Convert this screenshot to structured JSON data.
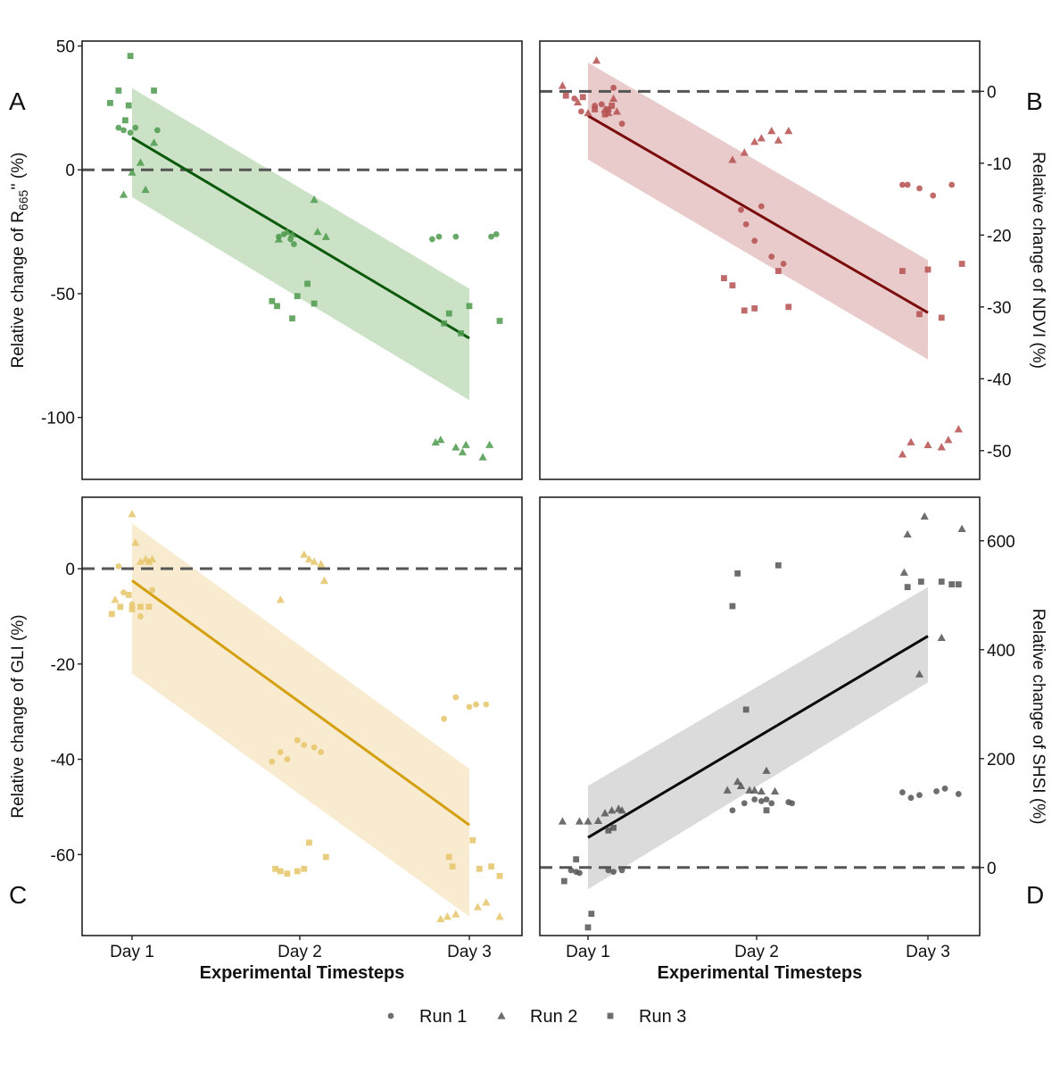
{
  "colors": {
    "green": "#1f6b1f",
    "green_line": "#0b5a0b",
    "green_point": "#4e9a4e",
    "green_band": "#b9d8b4",
    "red_line": "#7a0c0c",
    "red_point": "#b55050",
    "red_band": "#e3b9b9",
    "yellow_line": "#d4a010",
    "yellow_point": "#e6c56a",
    "yellow_band": "#f6e4c0",
    "black_line": "#0a0a0a",
    "grey_point": "#555555",
    "grey_band": "#cfcfcf",
    "dash": "#555555"
  },
  "shared": {
    "categories": [
      "Day 1",
      "Day 2",
      "Day 3"
    ],
    "xlabel": "Experimental Timesteps"
  },
  "legend": {
    "items": [
      {
        "label": "Run 1",
        "shape": "circle"
      },
      {
        "label": "Run 2",
        "shape": "triangle"
      },
      {
        "label": "Run 3",
        "shape": "square"
      }
    ]
  },
  "chart_data": [
    {
      "type": "scatter",
      "panel_letter": "A",
      "ylabel_main": "Relative change of  R",
      "ylabel_sub": "665",
      "ylabel_tail": "'' (%)",
      "ylim": [
        -125,
        52
      ],
      "yticks": [
        50,
        0,
        -50,
        -100
      ],
      "ytick_labels": [
        "50",
        "0",
        "-50",
        "-100"
      ],
      "reference_y": 0,
      "fit": {
        "start": 13,
        "end": -68
      },
      "band": {
        "upper_start": 33,
        "lower_start": -11,
        "upper_end": -48,
        "lower_end": -93
      },
      "series": [
        {
          "name": "Run 1",
          "points": [
            [
              0.92,
              17
            ],
            [
              0.95,
              16
            ],
            [
              0.99,
              15
            ],
            [
              1.02,
              17
            ],
            [
              1.15,
              16
            ],
            [
              1.87,
              -27
            ],
            [
              1.9,
              -26
            ],
            [
              1.94,
              -28
            ],
            [
              1.96,
              -30
            ],
            [
              2.78,
              -28
            ],
            [
              2.82,
              -27
            ],
            [
              2.92,
              -27
            ],
            [
              3.13,
              -27
            ],
            [
              3.16,
              -26
            ]
          ]
        },
        {
          "name": "Run 2",
          "points": [
            [
              0.95,
              -10
            ],
            [
              1.0,
              -1
            ],
            [
              1.05,
              3
            ],
            [
              1.08,
              -8
            ],
            [
              1.13,
              11
            ],
            [
              1.87,
              -28
            ],
            [
              1.92,
              -25
            ],
            [
              1.95,
              -26
            ],
            [
              2.08,
              -12
            ],
            [
              2.1,
              -25
            ],
            [
              2.15,
              -27
            ],
            [
              2.8,
              -110
            ],
            [
              2.83,
              -109
            ],
            [
              2.92,
              -112
            ],
            [
              2.96,
              -114
            ],
            [
              2.98,
              -111
            ],
            [
              3.08,
              -116
            ],
            [
              3.12,
              -111
            ]
          ]
        },
        {
          "name": "Run 3",
          "points": [
            [
              0.87,
              27
            ],
            [
              0.92,
              32
            ],
            [
              0.96,
              20
            ],
            [
              0.98,
              26
            ],
            [
              0.99,
              46
            ],
            [
              1.13,
              32
            ],
            [
              1.83,
              -53
            ],
            [
              1.86,
              -55
            ],
            [
              1.95,
              -60
            ],
            [
              1.98,
              -51
            ],
            [
              2.04,
              -46
            ],
            [
              2.08,
              -54
            ],
            [
              2.85,
              -62
            ],
            [
              2.88,
              -58
            ],
            [
              2.95,
              -66
            ],
            [
              3.0,
              -55
            ],
            [
              3.18,
              -61
            ]
          ]
        }
      ]
    },
    {
      "type": "scatter",
      "panel_letter": "B",
      "ylabel": "Relative change of NDVI  (%)",
      "ylim": [
        -54,
        7
      ],
      "yticks": [
        0,
        -10,
        -20,
        -30,
        -40,
        -50
      ],
      "ytick_labels": [
        "0",
        "-10",
        "-20",
        "-30",
        "-40",
        "-50"
      ],
      "reference_y": 0,
      "fit": {
        "start": -3.4,
        "end": -30.8
      },
      "band": {
        "upper_start": 4,
        "lower_start": -9.5,
        "upper_end": -23.5,
        "lower_end": -37.3
      },
      "series": [
        {
          "name": "Run 1",
          "points": [
            [
              0.92,
              -1
            ],
            [
              0.96,
              -2.8
            ],
            [
              1.04,
              -2
            ],
            [
              1.08,
              -1.8
            ],
            [
              1.15,
              0.5
            ],
            [
              1.2,
              -4.5
            ],
            [
              1.9,
              -16.5
            ],
            [
              1.93,
              -18.5
            ],
            [
              1.98,
              -20.8
            ],
            [
              2.02,
              -16
            ],
            [
              2.08,
              -23
            ],
            [
              2.15,
              -24
            ],
            [
              2.85,
              -13
            ],
            [
              2.88,
              -13
            ],
            [
              2.95,
              -13.5
            ],
            [
              3.03,
              -14.5
            ],
            [
              3.14,
              -13
            ]
          ]
        },
        {
          "name": "Run 2",
          "points": [
            [
              0.85,
              0.8
            ],
            [
              0.94,
              -1.5
            ],
            [
              1.0,
              -3
            ],
            [
              1.05,
              4.3
            ],
            [
              1.1,
              -2.5
            ],
            [
              1.12,
              -3
            ],
            [
              1.15,
              -1
            ],
            [
              1.17,
              -2.8
            ],
            [
              1.85,
              -9.5
            ],
            [
              1.92,
              -8.5
            ],
            [
              1.98,
              -7
            ],
            [
              2.02,
              -6.5
            ],
            [
              2.08,
              -5.5
            ],
            [
              2.12,
              -6.8
            ],
            [
              2.18,
              -5.5
            ],
            [
              2.85,
              -50.5
            ],
            [
              2.9,
              -48.8
            ],
            [
              3.0,
              -49.2
            ],
            [
              3.08,
              -49.5
            ],
            [
              3.12,
              -48.5
            ],
            [
              3.18,
              -47
            ]
          ]
        },
        {
          "name": "Run 3",
          "points": [
            [
              0.87,
              -0.6
            ],
            [
              0.97,
              -0.8
            ],
            [
              1.04,
              -2.5
            ],
            [
              1.1,
              -3.2
            ],
            [
              1.12,
              -2.5
            ],
            [
              1.14,
              -2
            ],
            [
              1.8,
              -26
            ],
            [
              1.85,
              -27
            ],
            [
              1.92,
              -30.5
            ],
            [
              1.98,
              -30.2
            ],
            [
              2.12,
              -25
            ],
            [
              2.18,
              -30
            ],
            [
              2.85,
              -25
            ],
            [
              2.95,
              -31
            ],
            [
              3.0,
              -24.8
            ],
            [
              3.08,
              -31.5
            ],
            [
              3.2,
              -24
            ]
          ]
        }
      ]
    },
    {
      "type": "scatter",
      "panel_letter": "C",
      "ylabel": "Relative change of GLI (%)",
      "ylim": [
        -77,
        15
      ],
      "yticks": [
        0,
        -20,
        -40,
        -60
      ],
      "ytick_labels": [
        "0",
        "-20",
        "-40",
        "-60"
      ],
      "reference_y": 0,
      "fit": {
        "start": -2.5,
        "end": -53.8
      },
      "band": {
        "upper_start": 9.5,
        "lower_start": -22,
        "upper_end": -42,
        "lower_end": -73
      },
      "series": [
        {
          "name": "Run 1",
          "points": [
            [
              0.92,
              0.5
            ],
            [
              0.95,
              -5
            ],
            [
              1.0,
              -7.5
            ],
            [
              1.05,
              -10
            ],
            [
              1.12,
              -4.5
            ],
            [
              1.83,
              -40.5
            ],
            [
              1.88,
              -38.5
            ],
            [
              1.92,
              -40
            ],
            [
              1.98,
              -36
            ],
            [
              2.02,
              -37
            ],
            [
              2.08,
              -37.5
            ],
            [
              2.12,
              -38.5
            ],
            [
              2.85,
              -31.5
            ],
            [
              2.92,
              -27
            ],
            [
              3.0,
              -29
            ],
            [
              3.04,
              -28.5
            ],
            [
              3.1,
              -28.5
            ]
          ]
        },
        {
          "name": "Run 2",
          "points": [
            [
              0.9,
              -6.5
            ],
            [
              1.0,
              11.5
            ],
            [
              1.02,
              5.5
            ],
            [
              1.05,
              1.5
            ],
            [
              1.08,
              2
            ],
            [
              1.1,
              1.5
            ],
            [
              1.12,
              2
            ],
            [
              1.88,
              -6.5
            ],
            [
              2.02,
              3
            ],
            [
              2.05,
              2
            ],
            [
              2.08,
              1.5
            ],
            [
              2.12,
              1
            ],
            [
              2.14,
              -2.5
            ],
            [
              2.83,
              -73.5
            ],
            [
              2.87,
              -73
            ],
            [
              2.92,
              -72.5
            ],
            [
              3.05,
              -71
            ],
            [
              3.1,
              -70
            ],
            [
              3.18,
              -73
            ]
          ]
        },
        {
          "name": "Run 3",
          "points": [
            [
              0.88,
              -9.5
            ],
            [
              0.93,
              -8
            ],
            [
              0.98,
              -5.5
            ],
            [
              1.0,
              -8.5
            ],
            [
              1.05,
              -8
            ],
            [
              1.1,
              -8
            ],
            [
              1.85,
              -63
            ],
            [
              1.88,
              -63.5
            ],
            [
              1.92,
              -64
            ],
            [
              1.98,
              -63.5
            ],
            [
              2.02,
              -63
            ],
            [
              2.05,
              -57.5
            ],
            [
              2.15,
              -60.5
            ],
            [
              2.88,
              -60.5
            ],
            [
              2.9,
              -62.5
            ],
            [
              3.02,
              -57
            ],
            [
              3.06,
              -63
            ],
            [
              3.13,
              -62.5
            ],
            [
              3.18,
              -64.5
            ]
          ]
        }
      ]
    },
    {
      "type": "scatter",
      "panel_letter": "D",
      "ylabel": "Relative change of SHSI (%)",
      "ylim": [
        -125,
        680
      ],
      "yticks": [
        600,
        400,
        200,
        0
      ],
      "ytick_labels": [
        "600",
        "400",
        "200",
        "0"
      ],
      "reference_y": 0,
      "fit": {
        "start": 55,
        "end": 425
      },
      "band": {
        "upper_start": 150,
        "lower_start": -40,
        "upper_end": 515,
        "lower_end": 340
      },
      "series": [
        {
          "name": "Run 1",
          "points": [
            [
              0.9,
              -5
            ],
            [
              0.93,
              -8
            ],
            [
              0.95,
              -10
            ],
            [
              1.12,
              -5
            ],
            [
              1.15,
              -8
            ],
            [
              1.2,
              -5
            ],
            [
              1.85,
              105
            ],
            [
              1.92,
              118
            ],
            [
              1.98,
              125
            ],
            [
              2.02,
              122
            ],
            [
              2.05,
              125
            ],
            [
              2.08,
              118
            ],
            [
              2.18,
              120
            ],
            [
              2.2,
              118
            ],
            [
              2.85,
              138
            ],
            [
              2.9,
              128
            ],
            [
              2.95,
              133
            ],
            [
              3.05,
              140
            ],
            [
              3.1,
              145
            ],
            [
              3.18,
              135
            ]
          ]
        },
        {
          "name": "Run 2",
          "points": [
            [
              0.85,
              85
            ],
            [
              0.95,
              85
            ],
            [
              1.0,
              85
            ],
            [
              1.06,
              86
            ],
            [
              1.1,
              100
            ],
            [
              1.14,
              105
            ],
            [
              1.18,
              108
            ],
            [
              1.2,
              105
            ],
            [
              1.82,
              142
            ],
            [
              1.88,
              158
            ],
            [
              1.9,
              150
            ],
            [
              1.95,
              142
            ],
            [
              1.98,
              142
            ],
            [
              2.02,
              140
            ],
            [
              2.05,
              178
            ],
            [
              2.1,
              140
            ],
            [
              2.86,
              542
            ],
            [
              2.88,
              612
            ],
            [
              2.95,
              355
            ],
            [
              2.98,
              645
            ],
            [
              3.08,
              422
            ],
            [
              3.2,
              622
            ]
          ]
        },
        {
          "name": "Run 3",
          "points": [
            [
              0.86,
              -25
            ],
            [
              0.93,
              15
            ],
            [
              1.02,
              -85
            ],
            [
              1.0,
              -110
            ],
            [
              1.15,
              73
            ],
            [
              1.12,
              68
            ],
            [
              1.88,
              540
            ],
            [
              1.85,
              480
            ],
            [
              1.93,
              290
            ],
            [
              2.05,
              105
            ],
            [
              2.12,
              555
            ],
            [
              2.88,
              515
            ],
            [
              2.96,
              525
            ],
            [
              3.08,
              525
            ],
            [
              3.14,
              520
            ],
            [
              3.18,
              520
            ]
          ]
        }
      ]
    }
  ]
}
